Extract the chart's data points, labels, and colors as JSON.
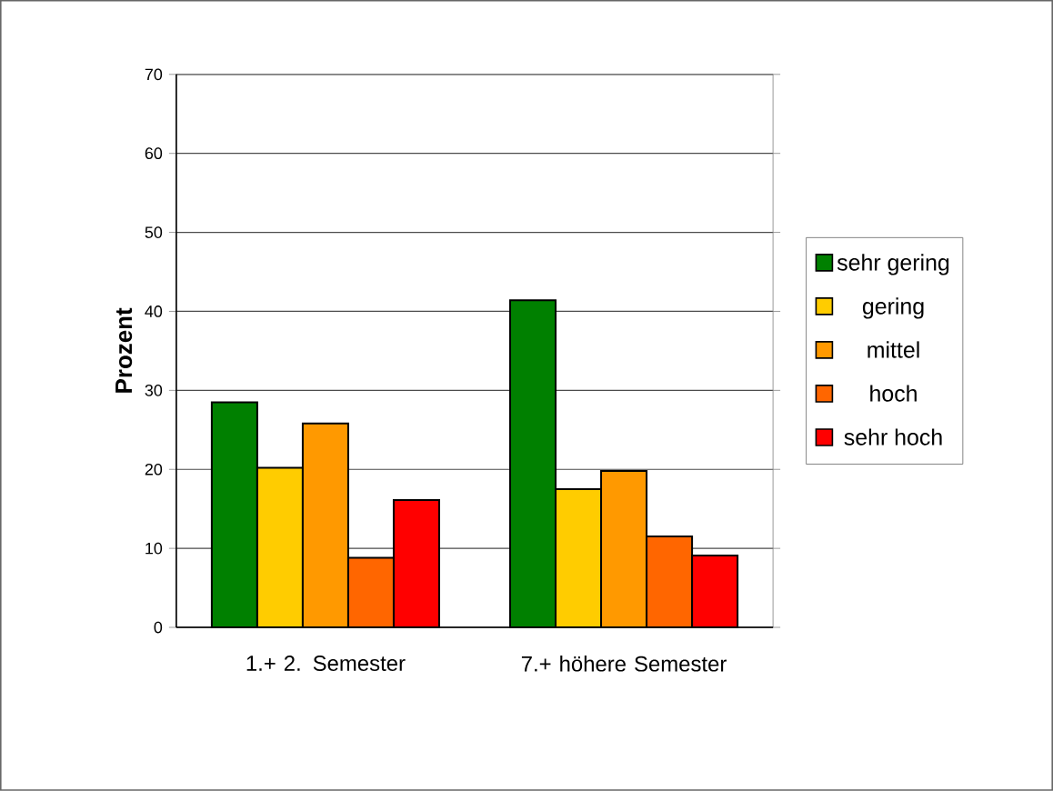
{
  "chart_data": {
    "type": "bar",
    "ylabel": "Prozent",
    "categories": [
      "1.+ 2. Semester",
      "7.+ höhere Semester"
    ],
    "series": [
      {
        "name": "sehr gering",
        "color": "#008000",
        "values": [
          28.5,
          41.4
        ]
      },
      {
        "name": "gering",
        "color": "#ffcc00",
        "values": [
          20.2,
          17.5
        ]
      },
      {
        "name": "mittel",
        "color": "#ff9900",
        "values": [
          25.8,
          19.8
        ]
      },
      {
        "name": "hoch",
        "color": "#ff6600",
        "values": [
          8.8,
          11.5
        ]
      },
      {
        "name": "sehr hoch",
        "color": "#ff0000",
        "values": [
          16.1,
          9.1
        ]
      }
    ],
    "ylim": [
      0,
      70
    ],
    "yticks": [
      0,
      10,
      20,
      30,
      40,
      50,
      60,
      70
    ],
    "grid": "y",
    "legend": "right"
  }
}
